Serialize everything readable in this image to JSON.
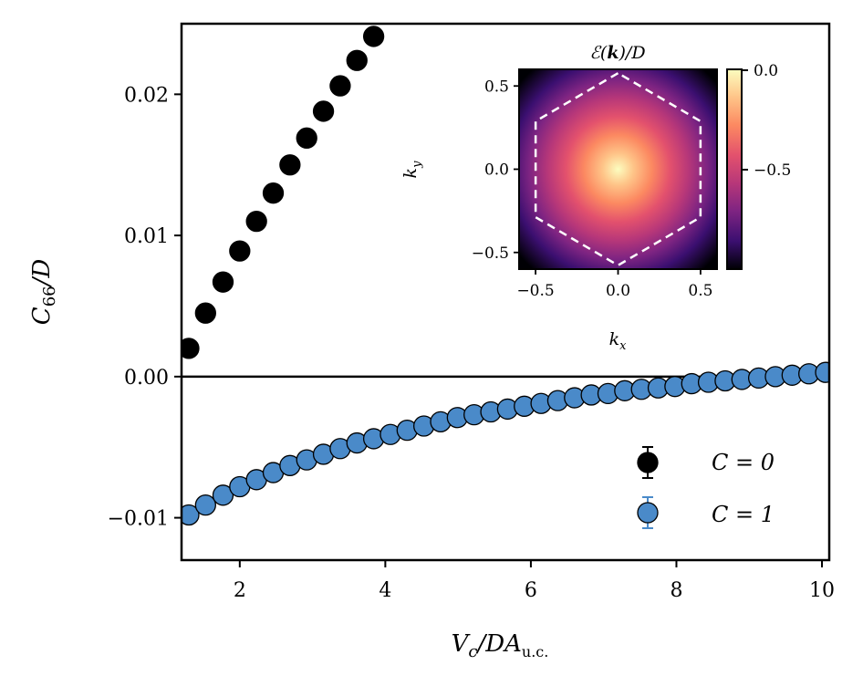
{
  "chart_data": {
    "type": "scatter",
    "xlabel": "V_c/DA_u.c.",
    "ylabel": "C_66/D",
    "xlim": [
      1.2,
      10.1
    ],
    "ylim": [
      -0.013,
      0.025
    ],
    "x_ticks": [
      "2",
      "4",
      "6",
      "8",
      "10"
    ],
    "y_ticks": [
      "−0.01",
      "0.00",
      "0.01",
      "0.02"
    ],
    "hline_y": 0.0,
    "legend_position": "lower-right",
    "series": [
      {
        "name": "C = 0",
        "label": "C = 0",
        "color": "#000000",
        "points": [
          [
            1.3,
            0.002
          ],
          [
            1.53,
            0.0045
          ],
          [
            1.77,
            0.0067
          ],
          [
            2.0,
            0.0089
          ],
          [
            2.23,
            0.011
          ],
          [
            2.46,
            0.013
          ],
          [
            2.69,
            0.015
          ],
          [
            2.92,
            0.0169
          ],
          [
            3.15,
            0.0188
          ],
          [
            3.38,
            0.0206
          ],
          [
            3.61,
            0.0224
          ],
          [
            3.84,
            0.0241
          ]
        ]
      },
      {
        "name": "C = 1",
        "label": "C = 1",
        "color": "#4a8ac9",
        "points": [
          [
            1.3,
            -0.0098
          ],
          [
            1.53,
            -0.0091
          ],
          [
            1.77,
            -0.0084
          ],
          [
            2.0,
            -0.0078
          ],
          [
            2.23,
            -0.0073
          ],
          [
            2.46,
            -0.0068
          ],
          [
            2.69,
            -0.0063
          ],
          [
            2.92,
            -0.0059
          ],
          [
            3.15,
            -0.0055
          ],
          [
            3.38,
            -0.0051
          ],
          [
            3.61,
            -0.0047
          ],
          [
            3.84,
            -0.0044
          ],
          [
            4.07,
            -0.0041
          ],
          [
            4.3,
            -0.0038
          ],
          [
            4.53,
            -0.0035
          ],
          [
            4.76,
            -0.0032
          ],
          [
            4.99,
            -0.0029
          ],
          [
            5.22,
            -0.0027
          ],
          [
            5.45,
            -0.0025
          ],
          [
            5.68,
            -0.0023
          ],
          [
            5.91,
            -0.0021
          ],
          [
            6.14,
            -0.0019
          ],
          [
            6.37,
            -0.0017
          ],
          [
            6.6,
            -0.0015
          ],
          [
            6.83,
            -0.0013
          ],
          [
            7.06,
            -0.0012
          ],
          [
            7.29,
            -0.001
          ],
          [
            7.52,
            -0.0009
          ],
          [
            7.75,
            -0.0008
          ],
          [
            7.98,
            -0.0007
          ],
          [
            8.21,
            -0.0005
          ],
          [
            8.44,
            -0.0004
          ],
          [
            8.67,
            -0.0003
          ],
          [
            8.9,
            -0.0002
          ],
          [
            9.13,
            -0.0001
          ],
          [
            9.36,
            0.0
          ],
          [
            9.59,
            0.0001
          ],
          [
            9.82,
            0.0002
          ],
          [
            10.05,
            0.0003
          ]
        ]
      }
    ],
    "inset": {
      "type": "heatmap",
      "title": "ℰ(k)/D",
      "xlabel": "k_x",
      "ylabel": "k_y",
      "xlim": [
        -0.6,
        0.6
      ],
      "ylim": [
        -0.6,
        0.6
      ],
      "x_ticks": [
        "−0.5",
        "0.0",
        "0.5"
      ],
      "y_ticks": [
        "−0.5",
        "0.0",
        "0.5"
      ],
      "colorbar_range": [
        -1.0,
        0.0
      ],
      "colorbar_ticks": [
        "0.0",
        "−0.5"
      ],
      "colormap": "magma",
      "brillouin_zone": "hexagon",
      "bz_corner_radius": 0.577
    }
  }
}
